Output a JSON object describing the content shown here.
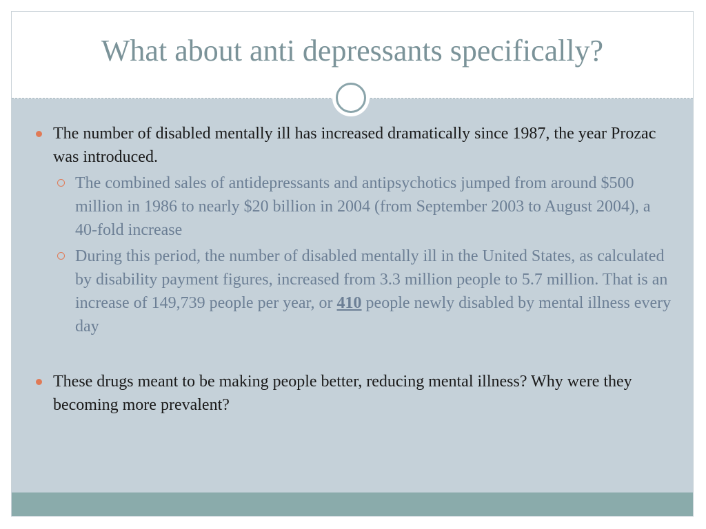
{
  "slide": {
    "title": "What about anti depressants specifically?",
    "bullets": [
      {
        "text": "The number of disabled mentally ill has increased dramatically since 1987, the year Prozac was introduced.",
        "subbullets": [
          {
            "text": "The combined sales of antidepressants and antipsychotics jumped from around $500 million in 1986 to nearly $20 billion in 2004 (from September 2003 to August 2004), a 40-fold increase"
          },
          {
            "text_before": "During this period, the number of disabled mentally ill in the United States, as calculated by disability payment figures, increased from 3.3 million people to 5.7 million. That is an increase of 149,739 people per year, or ",
            "emphasis": "410",
            "text_after": " people newly disabled by mental illness every day"
          }
        ]
      },
      {
        "text": "These drugs meant to be making people better, reducing mental illness? Why were they becoming more prevalent?"
      }
    ]
  },
  "colors": {
    "title": "#7b9399",
    "body_background": "#c5d1d9",
    "primary_text": "#1a1a1a",
    "secondary_text": "#6c7f95",
    "bullet_accent": "#e07a56",
    "footer_bar": "#8aabab"
  }
}
